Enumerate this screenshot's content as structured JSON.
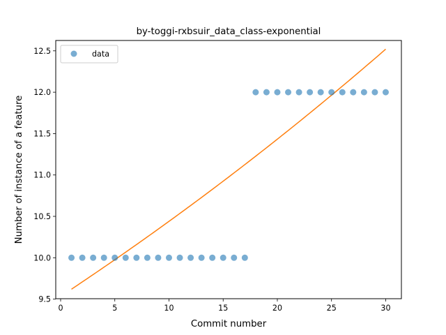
{
  "chart_data": {
    "type": "scatter",
    "title": "by-toggi-rxbsuir_data_class-exponential",
    "xlabel": "Commit number",
    "ylabel": "Number of instance of a feature",
    "xlim": [
      -0.45,
      31.45
    ],
    "ylim": [
      9.505,
      12.625
    ],
    "x_ticks": [
      0,
      5,
      10,
      15,
      20,
      25,
      30
    ],
    "x_tick_labels": [
      "0",
      "5",
      "10",
      "15",
      "20",
      "25",
      "30"
    ],
    "y_ticks": [
      9.5,
      10.0,
      10.5,
      11.0,
      11.5,
      12.0,
      12.5
    ],
    "y_tick_labels": [
      "9.5",
      "10.0",
      "10.5",
      "11.0",
      "11.5",
      "12.0",
      "12.5"
    ],
    "grid": false,
    "legend_position": "upper-left",
    "series": [
      {
        "name": "data",
        "kind": "scatter",
        "color": "#1f77b4",
        "x": [
          1,
          2,
          3,
          4,
          5,
          6,
          7,
          8,
          9,
          10,
          11,
          12,
          13,
          14,
          15,
          16,
          17,
          18,
          19,
          20,
          21,
          22,
          23,
          24,
          25,
          26,
          27,
          28,
          29,
          30
        ],
        "y": [
          10,
          10,
          10,
          10,
          10,
          10,
          10,
          10,
          10,
          10,
          10,
          10,
          10,
          10,
          10,
          10,
          10,
          12,
          12,
          12,
          12,
          12,
          12,
          12,
          12,
          12,
          12,
          12,
          12,
          12
        ]
      },
      {
        "kind": "line",
        "color": "#ff7f0e",
        "curve": "exponential",
        "x_range": [
          1,
          30
        ],
        "y_start": 9.62,
        "y_end": 12.52
      }
    ]
  }
}
